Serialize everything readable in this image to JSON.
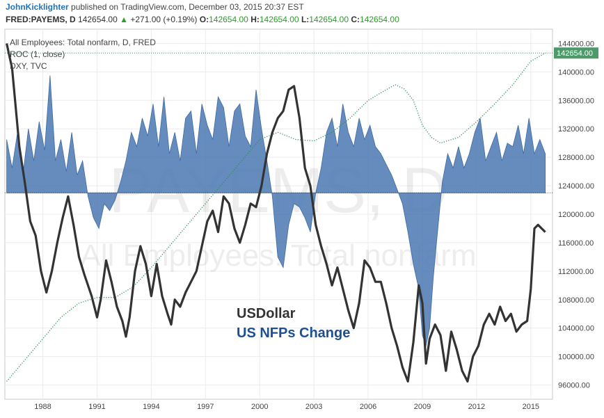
{
  "header": {
    "author": "JohnKicklighter",
    "published_text": "published on TradingView.com, December 03, 2015 20:37 EST",
    "symbol": "FRED:PAYEMS, D",
    "last": "142654.00",
    "change": "+271.00 (+0.19%)",
    "o_label": "O:",
    "o_value": "142654.00",
    "h_label": "H:",
    "h_value": "142654.00",
    "l_label": "L:",
    "l_value": "142654.00",
    "c_label": "C:",
    "c_value": "142654.00"
  },
  "legend": {
    "line1": "All Employees: Total nonfarm, D, FRED",
    "line2": "ROC (1, close)",
    "line3": "DXY, TVC"
  },
  "watermark": {
    "line1": "PAYEMS, D",
    "line2": "All Employees: Total nonfarm"
  },
  "annotations": {
    "usd": "USDollar",
    "nfp": "US NFPs Change"
  },
  "colors": {
    "usd": "#333333",
    "nfp_text": "#1d4f91",
    "nfp_fill": "#4a78b2",
    "payems_line": "#2e8b57",
    "price_tag": "#4c9a6a"
  },
  "chart_data": {
    "type": "area",
    "xlabel": "",
    "ylabel": "",
    "x_ticks": [
      "1988",
      "1991",
      "1994",
      "1997",
      "2000",
      "2003",
      "2006",
      "2009",
      "2012",
      "2015"
    ],
    "y_ticks": [
      "144000.00",
      "140000.00",
      "136000.00",
      "132000.00",
      "128000.00",
      "124000.00",
      "120000.00",
      "116000.00",
      "112000.00",
      "108000.00",
      "104000.00",
      "100000.00",
      "96000.00"
    ],
    "ylim": [
      94000,
      146000
    ],
    "xlim": [
      1985.9,
      2016.2
    ],
    "last_price_label": "142654.00",
    "grid": true,
    "series": [
      {
        "name": "All Employees: Total nonfarm",
        "style": "dotted line",
        "x": [
          1986.0,
          1987.0,
          1988.0,
          1989.0,
          1990.0,
          1991.0,
          1992.0,
          1993.0,
          1994.0,
          1995.0,
          1996.0,
          1997.0,
          1998.0,
          1999.0,
          2000.0,
          2001.0,
          2002.0,
          2003.0,
          2004.0,
          2005.0,
          2006.0,
          2007.0,
          2007.5,
          2008.0,
          2008.5,
          2009.0,
          2009.5,
          2010.0,
          2011.0,
          2012.0,
          2013.0,
          2014.0,
          2015.0,
          2015.8
        ],
        "y": [
          96500,
          99500,
          102500,
          105500,
          107500,
          108300,
          108300,
          109800,
          112500,
          115500,
          118500,
          121500,
          124500,
          127500,
          130500,
          131500,
          130500,
          130300,
          131500,
          133500,
          136000,
          137500,
          138200,
          137600,
          136000,
          132500,
          130800,
          130000,
          130800,
          133000,
          135500,
          138200,
          141500,
          142654
        ]
      },
      {
        "name": "ROC (1, close)",
        "style": "area",
        "baseline": 123000,
        "x": [
          1986.0,
          1986.3,
          1986.6,
          1986.9,
          1987.2,
          1987.5,
          1987.8,
          1988.1,
          1988.4,
          1988.7,
          1989.0,
          1989.3,
          1989.6,
          1989.9,
          1990.2,
          1990.5,
          1990.8,
          1991.1,
          1991.4,
          1991.7,
          1992.0,
          1992.3,
          1992.6,
          1992.9,
          1993.2,
          1993.5,
          1993.8,
          1994.1,
          1994.4,
          1994.7,
          1995.0,
          1995.3,
          1995.6,
          1995.9,
          1996.2,
          1996.5,
          1996.8,
          1997.1,
          1997.4,
          1997.7,
          1998.0,
          1998.3,
          1998.6,
          1998.9,
          1999.2,
          1999.5,
          1999.8,
          2000.1,
          2000.4,
          2000.7,
          2001.0,
          2001.3,
          2001.6,
          2001.9,
          2002.2,
          2002.5,
          2002.8,
          2003.1,
          2003.4,
          2003.7,
          2004.0,
          2004.3,
          2004.6,
          2004.9,
          2005.2,
          2005.5,
          2005.8,
          2006.1,
          2006.4,
          2006.7,
          2007.0,
          2007.3,
          2007.6,
          2007.9,
          2008.2,
          2008.5,
          2008.8,
          2009.0,
          2009.2,
          2009.4,
          2009.6,
          2009.8,
          2010.1,
          2010.4,
          2010.7,
          2011.0,
          2011.3,
          2011.6,
          2011.9,
          2012.2,
          2012.5,
          2012.8,
          2013.1,
          2013.4,
          2013.7,
          2014.0,
          2014.3,
          2014.6,
          2014.9,
          2015.2,
          2015.5,
          2015.8
        ],
        "y": [
          130500,
          126500,
          131500,
          125500,
          132000,
          127500,
          133000,
          129000,
          139500,
          127500,
          130500,
          126000,
          131500,
          125500,
          127500,
          122500,
          119500,
          118000,
          121500,
          120500,
          122000,
          124500,
          127500,
          131500,
          129500,
          133500,
          131000,
          135500,
          129500,
          136500,
          128500,
          131500,
          127500,
          133500,
          134500,
          128500,
          135500,
          132500,
          130500,
          136500,
          135000,
          129500,
          134500,
          135500,
          131000,
          129500,
          137500,
          132000,
          127500,
          122500,
          114000,
          112500,
          118500,
          121500,
          121000,
          119500,
          117500,
          123000,
          126500,
          131500,
          133500,
          129500,
          135500,
          131500,
          129500,
          133500,
          130500,
          132500,
          129500,
          128500,
          127000,
          125500,
          123500,
          121500,
          117500,
          113000,
          109500,
          103000,
          101500,
          104000,
          111000,
          116500,
          124500,
          128500,
          126500,
          129500,
          126500,
          128500,
          131500,
          133500,
          127500,
          129500,
          131500,
          127500,
          130000,
          129500,
          132500,
          128500,
          133500,
          128500,
          130500,
          128500
        ]
      },
      {
        "name": "DXY, TVC",
        "style": "line",
        "x": [
          1986.0,
          1986.3,
          1986.5,
          1986.7,
          1987.0,
          1987.3,
          1987.6,
          1987.9,
          1988.2,
          1988.5,
          1988.8,
          1989.1,
          1989.4,
          1989.7,
          1990.0,
          1990.3,
          1990.7,
          1991.0,
          1991.2,
          1991.5,
          1991.8,
          1992.1,
          1992.4,
          1992.6,
          1992.8,
          1993.1,
          1993.4,
          1993.7,
          1994.0,
          1994.3,
          1994.6,
          1994.9,
          1995.1,
          1995.3,
          1995.6,
          1995.9,
          1996.2,
          1996.5,
          1996.8,
          1997.1,
          1997.4,
          1997.7,
          1998.0,
          1998.3,
          1998.6,
          1998.9,
          1999.2,
          1999.5,
          1999.8,
          2000.1,
          2000.4,
          2000.7,
          2001.0,
          2001.3,
          2001.6,
          2001.9,
          2002.2,
          2002.5,
          2002.8,
          2003.1,
          2003.4,
          2003.7,
          2004.0,
          2004.3,
          2004.6,
          2004.9,
          2005.2,
          2005.5,
          2005.8,
          2006.1,
          2006.4,
          2006.7,
          2007.0,
          2007.3,
          2007.6,
          2007.9,
          2008.2,
          2008.5,
          2008.8,
          2009.0,
          2009.2,
          2009.4,
          2009.7,
          2010.0,
          2010.3,
          2010.6,
          2010.9,
          2011.2,
          2011.5,
          2011.8,
          2012.1,
          2012.4,
          2012.7,
          2013.0,
          2013.3,
          2013.6,
          2013.9,
          2014.2,
          2014.5,
          2014.8,
          2015.0,
          2015.2,
          2015.4,
          2015.6,
          2015.8
        ],
        "y": [
          144000,
          140500,
          135000,
          129500,
          124500,
          119000,
          117000,
          112000,
          109000,
          112000,
          116000,
          119500,
          122500,
          118500,
          114000,
          111500,
          108500,
          105500,
          108000,
          113500,
          110500,
          107000,
          105000,
          102800,
          105500,
          112000,
          115500,
          113000,
          108500,
          113000,
          108500,
          106000,
          104500,
          108000,
          107000,
          109000,
          110500,
          112000,
          115500,
          119000,
          120500,
          117500,
          122500,
          121500,
          118000,
          116000,
          118500,
          121500,
          121000,
          124000,
          128500,
          131500,
          133500,
          134500,
          137500,
          138000,
          133500,
          126500,
          124000,
          118500,
          115500,
          113000,
          110000,
          112500,
          109500,
          106500,
          104000,
          107500,
          113500,
          112500,
          110500,
          110500,
          107500,
          104000,
          101500,
          98500,
          96500,
          102000,
          110000,
          107500,
          99000,
          102500,
          104500,
          103000,
          98000,
          103500,
          101000,
          98000,
          96500,
          100000,
          101500,
          104500,
          106000,
          104500,
          107000,
          105000,
          106000,
          103500,
          104500,
          105000,
          109500,
          118000,
          118500,
          118000,
          117500
        ]
      }
    ]
  }
}
